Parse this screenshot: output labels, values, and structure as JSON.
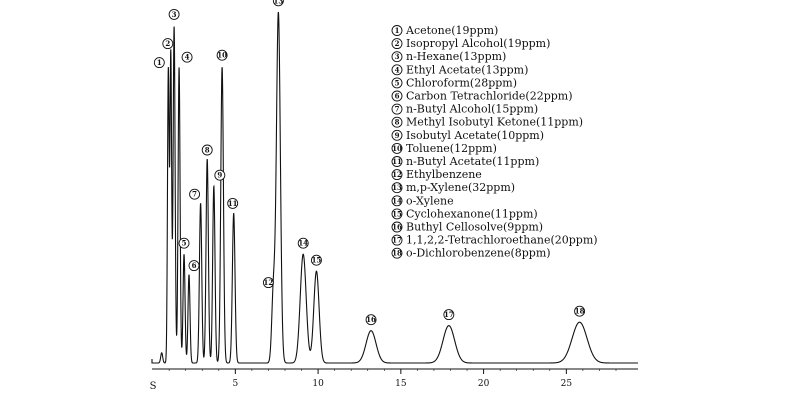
{
  "chart_data": {
    "type": "line",
    "xlabel": "",
    "ylabel": "",
    "xlim": [
      -1,
      29
    ],
    "ylim": [
      0,
      100
    ],
    "grid": false,
    "legend_position": "top-right",
    "start_label": "S",
    "x_ticks": [
      {
        "value": 5,
        "label": "5"
      },
      {
        "value": 10,
        "label": "10"
      },
      {
        "value": 15,
        "label": "15"
      },
      {
        "value": 20,
        "label": "20"
      },
      {
        "value": 25,
        "label": "25"
      }
    ],
    "peaks": [
      {
        "id": 1,
        "marker": "①",
        "rt": 0.95,
        "height": 86,
        "width": 0.05
      },
      {
        "id": 2,
        "marker": "②",
        "rt": 1.1,
        "height": 91,
        "width": 0.05
      },
      {
        "id": 3,
        "marker": "③",
        "rt": 1.3,
        "height": 99,
        "width": 0.06
      },
      {
        "id": 4,
        "marker": "④",
        "rt": 1.6,
        "height": 87,
        "width": 0.06
      },
      {
        "id": 5,
        "marker": "⑤",
        "rt": 1.9,
        "height": 32,
        "width": 0.06
      },
      {
        "id": 6,
        "marker": "⑥",
        "rt": 2.2,
        "height": 26,
        "width": 0.06
      },
      {
        "id": 7,
        "marker": "⑦",
        "rt": 2.9,
        "height": 47,
        "width": 0.07
      },
      {
        "id": 8,
        "marker": "⑧",
        "rt": 3.3,
        "height": 60,
        "width": 0.07
      },
      {
        "id": 9,
        "marker": "⑨",
        "rt": 3.7,
        "height": 52,
        "width": 0.07
      },
      {
        "id": 10,
        "marker": "⑩",
        "rt": 4.2,
        "height": 87,
        "width": 0.08
      },
      {
        "id": 11,
        "marker": "⑪",
        "rt": 4.9,
        "height": 44,
        "width": 0.08
      },
      {
        "id": 12,
        "marker": "⑫",
        "rt": 7.3,
        "height": 21,
        "width": 0.1
      },
      {
        "id": 13,
        "marker": "⑬",
        "rt": 7.6,
        "height": 103,
        "width": 0.12
      },
      {
        "id": 14,
        "marker": "⑭",
        "rt": 9.1,
        "height": 32,
        "width": 0.18
      },
      {
        "id": 15,
        "marker": "⑮",
        "rt": 9.9,
        "height": 27,
        "width": 0.16
      },
      {
        "id": 16,
        "marker": "⑯",
        "rt": 13.2,
        "height": 9.5,
        "width": 0.3
      },
      {
        "id": 17,
        "marker": "⑰",
        "rt": 17.9,
        "height": 11,
        "width": 0.35
      },
      {
        "id": 18,
        "marker": "⑱",
        "rt": 25.8,
        "height": 12,
        "width": 0.45
      }
    ],
    "legend": [
      {
        "marker": "①",
        "label": "Acetone(19ppm)"
      },
      {
        "marker": "②",
        "label": "Isopropyl Alcohol(19ppm)"
      },
      {
        "marker": "③",
        "label": "n-Hexane(13ppm)"
      },
      {
        "marker": "④",
        "label": "Ethyl Acetate(13ppm)"
      },
      {
        "marker": "⑤",
        "label": "Chloroform(28ppm)"
      },
      {
        "marker": "⑥",
        "label": "Carbon Tetrachloride(22ppm)"
      },
      {
        "marker": "⑦",
        "label": "n-Butyl Alcohol(15ppm)"
      },
      {
        "marker": "⑧",
        "label": "Methyl Isobutyl Ketone(11ppm)"
      },
      {
        "marker": "⑨",
        "label": "Isobutyl Acetate(10ppm)"
      },
      {
        "marker": "⑩",
        "label": "Toluene(12ppm)"
      },
      {
        "marker": "⑪",
        "label": "n-Butyl Acetate(11ppm)"
      },
      {
        "marker": "⑫",
        "label": "Ethylbenzene"
      },
      {
        "marker": "⑬",
        "label": "m,p-Xylene(32ppm)"
      },
      {
        "marker": "⑭",
        "label": "o-Xylene"
      },
      {
        "marker": "⑮",
        "label": "Cyclohexanone(11ppm)"
      },
      {
        "marker": "⑯",
        "label": "Buthyl Cellosolve(9ppm)"
      },
      {
        "marker": "⑰",
        "label": "1,1,2,2-Tetrachloroethane(20ppm)"
      },
      {
        "marker": "⑱",
        "label": "o-Dichlorobenzene(8ppm)"
      }
    ]
  }
}
